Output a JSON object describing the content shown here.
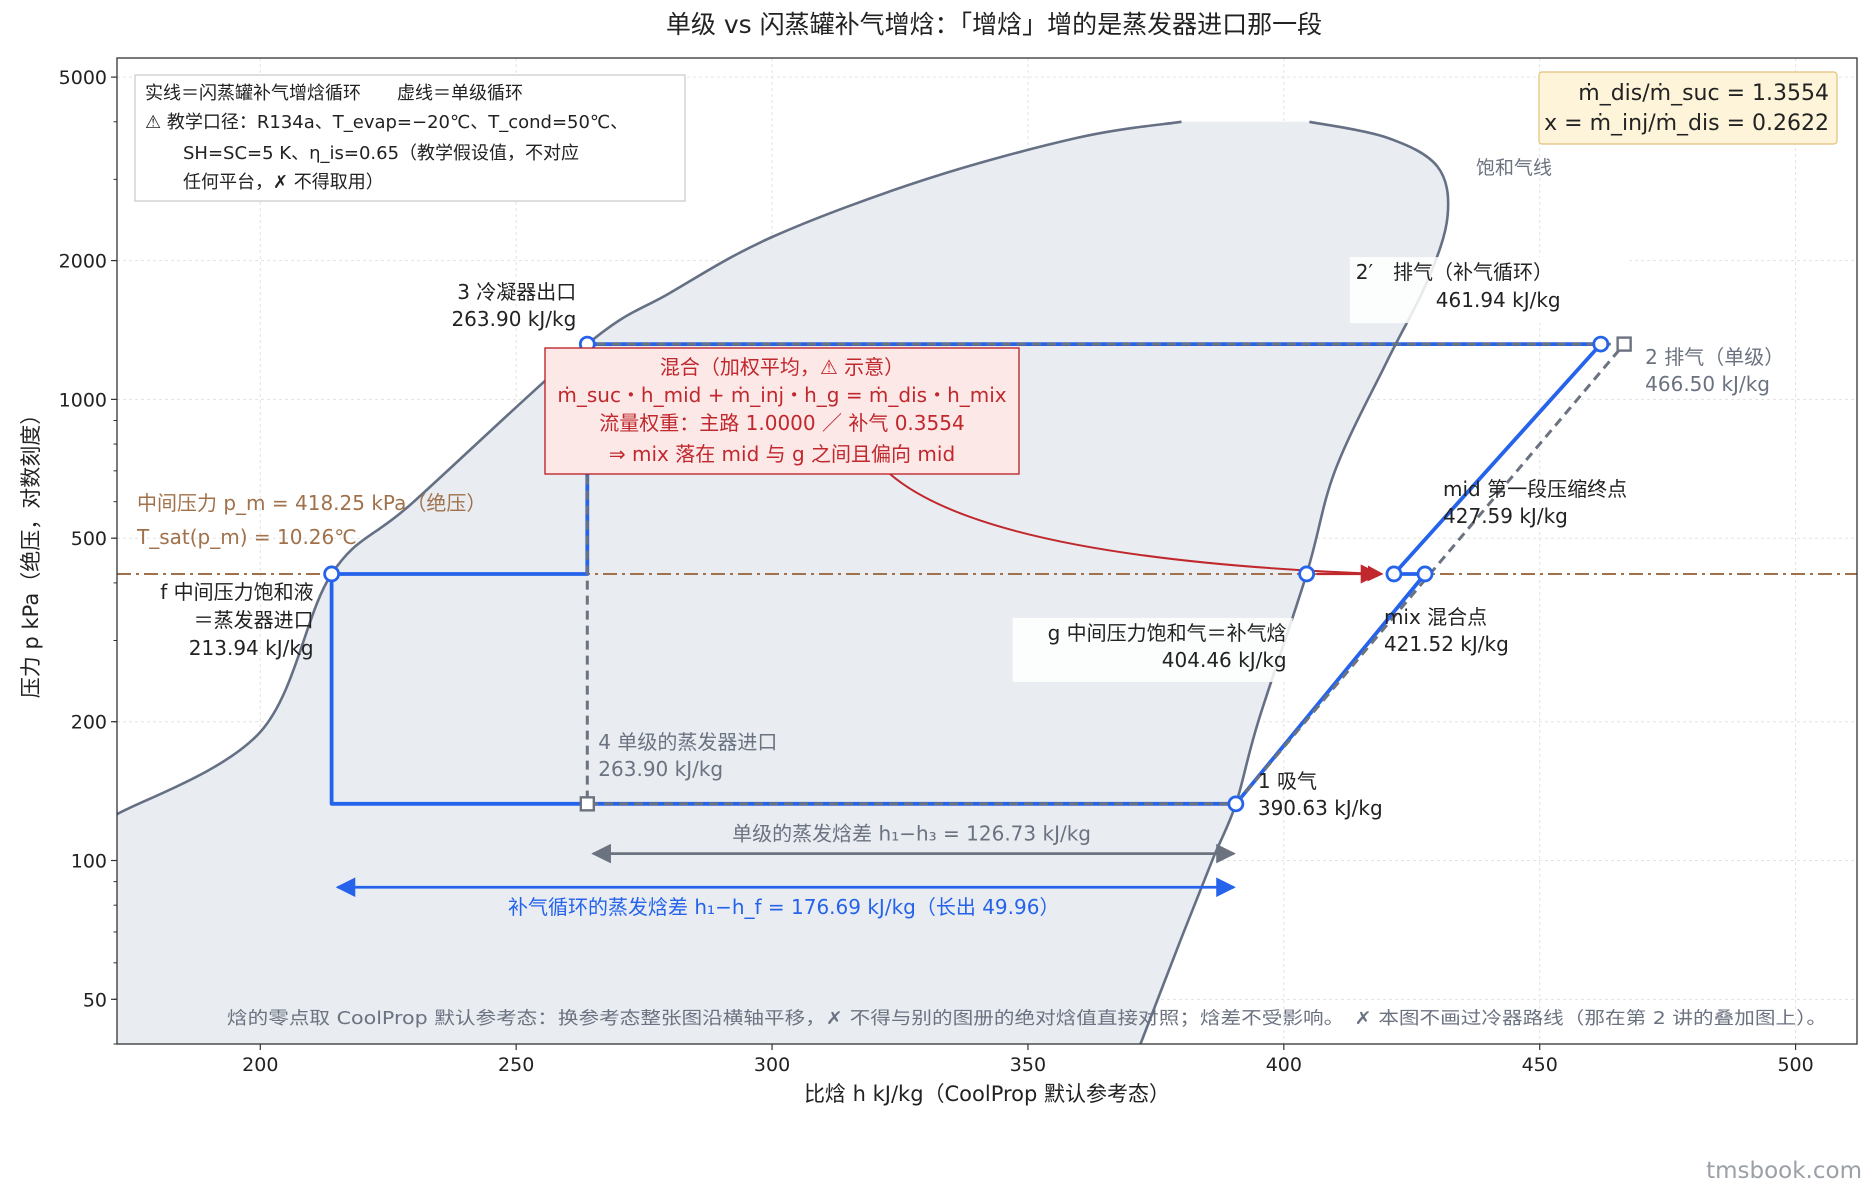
{
  "chart_data": {
    "type": "line",
    "title": "单级 vs 闪蒸罐补气增焓：「增焓」增的是蒸发器进口那一段",
    "xlabel": "比焓 h kJ/kg（CoolProp 默认参考态）",
    "ylabel": "压力 p kPa（绝压，对数刻度）",
    "xlim": [
      172,
      512
    ],
    "ylim": [
      40,
      5500
    ],
    "x_scale": "linear",
    "y_scale": "log",
    "grid": true,
    "x_ticks": [
      200,
      250,
      300,
      350,
      400,
      450,
      500
    ],
    "y_ticks": [
      50,
      100,
      200,
      500,
      1000,
      2000,
      5000
    ],
    "legend_lines": [
      "实线＝闪蒸罐补气增焓循环　　虚线＝单级循环",
      "⚠ 教学口径：R134a、T_evap=−20℃、T_cond=50℃、",
      "SH=SC=5 K、η_is=0.65（教学假设值，不对应",
      "任何平台，✗ 不得取用）"
    ],
    "info_box": [
      "ṁ_dis/ṁ_suc = 1.3554",
      "x = ṁ_inj/ṁ_dis = 0.2622"
    ],
    "saturation_dome": {
      "label": "饱和气线",
      "liquid_line": [
        [
          172,
          126
        ],
        [
          200,
          190
        ],
        [
          213.94,
          418.25
        ],
        [
          230,
          600
        ],
        [
          263.9,
          1318
        ],
        [
          280,
          1700
        ],
        [
          300,
          2250
        ],
        [
          330,
          3000
        ],
        [
          360,
          3700
        ],
        [
          380,
          4000
        ]
      ],
      "vapor_line": [
        [
          372,
          40
        ],
        [
          380,
          68
        ],
        [
          386,
          100
        ],
        [
          390.63,
          132.7
        ],
        [
          395,
          200
        ],
        [
          404.46,
          418.25
        ],
        [
          410,
          700
        ],
        [
          420,
          1200
        ],
        [
          428,
          1800
        ],
        [
          432,
          2500
        ],
        [
          430,
          3200
        ],
        [
          420,
          3700
        ],
        [
          405,
          4000
        ]
      ]
    },
    "series": [
      {
        "name": "闪蒸罐补气增焓循环",
        "style": "solid",
        "points": [
          [
            390.63,
            132.7
          ],
          [
            427.59,
            418.25
          ],
          [
            421.52,
            418.25
          ],
          [
            461.94,
            1318
          ],
          [
            263.9,
            1318
          ],
          [
            263.9,
            418.25
          ],
          [
            213.94,
            418.25
          ],
          [
            213.94,
            132.7
          ],
          [
            390.63,
            132.7
          ]
        ]
      },
      {
        "name": "单级循环",
        "style": "dashed",
        "points": [
          [
            390.63,
            132.7
          ],
          [
            466.5,
            1318
          ],
          [
            263.9,
            1318
          ],
          [
            263.9,
            132.7
          ],
          [
            390.63,
            132.7
          ]
        ]
      }
    ],
    "points": [
      {
        "id": "p3",
        "h": 263.9,
        "p": 1318,
        "lines": [
          "3 冷凝器出口",
          "263.90 kJ/kg"
        ]
      },
      {
        "id": "p2prime",
        "h": 461.94,
        "p": 1318,
        "lines": [
          "2′　排气（补气循环）",
          "461.94 kJ/kg"
        ]
      },
      {
        "id": "p2",
        "h": 466.5,
        "p": 1318,
        "lines": [
          "2 排气（单级）",
          "466.50 kJ/kg"
        ]
      },
      {
        "id": "pmid",
        "h": 427.59,
        "p": 418.25,
        "lines": [
          "mid 第一段压缩终点",
          "427.59 kJ/kg"
        ]
      },
      {
        "id": "pmix",
        "h": 421.52,
        "p": 418.25,
        "lines": [
          "mix 混合点",
          "421.52 kJ/kg"
        ]
      },
      {
        "id": "pg",
        "h": 404.46,
        "p": 418.25,
        "lines": [
          "g 中间压力饱和气＝补气焓",
          "404.46 kJ/kg"
        ]
      },
      {
        "id": "pf",
        "h": 213.94,
        "p": 418.25,
        "lines": [
          "f 中间压力饱和液",
          "＝蒸发器进口",
          "213.94 kJ/kg"
        ]
      },
      {
        "id": "p1",
        "h": 390.63,
        "p": 132.7,
        "lines": [
          "1 吸气",
          "390.63 kJ/kg"
        ]
      },
      {
        "id": "p4",
        "h": 263.9,
        "p": 132.7,
        "lines": [
          "4 单级的蒸发器进口",
          "263.90 kJ/kg"
        ]
      }
    ],
    "intermediate_pressure": {
      "p": 418.25,
      "lines": [
        "中间压力 p_m = 418.25 kPa（绝压）",
        "T_sat(p_m) = 10.26℃"
      ]
    },
    "mix_note": [
      "混合（加权平均，⚠ 示意）",
      "ṁ_suc・h_mid + ṁ_inj・h_g = ṁ_dis・h_mix",
      "流量权重：主路 1.0000 ／ 补气 0.3554",
      "⇒ mix 落在 mid 与 g 之间且偏向 mid"
    ],
    "single_evap_span": {
      "from": 263.9,
      "to": 390.63,
      "p": 103.5,
      "label": "单级的蒸发焓差 h₁−h₃ = 126.73 kJ/kg"
    },
    "flash_evap_span": {
      "from": 213.94,
      "to": 390.63,
      "p": 87.5,
      "label": "补气循环的蒸发焓差 h₁−h_f = 176.69 kJ/kg（长出 49.96）"
    },
    "footnote": "焓的零点取 CoolProp 默认参考态：换参考态整张图沿横轴平移，✗ 不得与别的图册的绝对焓值直接对照；焓差不受影响。　✗ 本图不画过冷器路线（那在第 2 讲的叠加图上）。",
    "watermark": "tmsbook.com",
    "colors": {
      "flash": "#2563eb",
      "single": "#6b7280",
      "dome_fill": "#e9edf2",
      "dome_line": "#667085",
      "pm": "#a0714a",
      "note": "#c0282d",
      "note_fill": "#fde8e8"
    }
  }
}
